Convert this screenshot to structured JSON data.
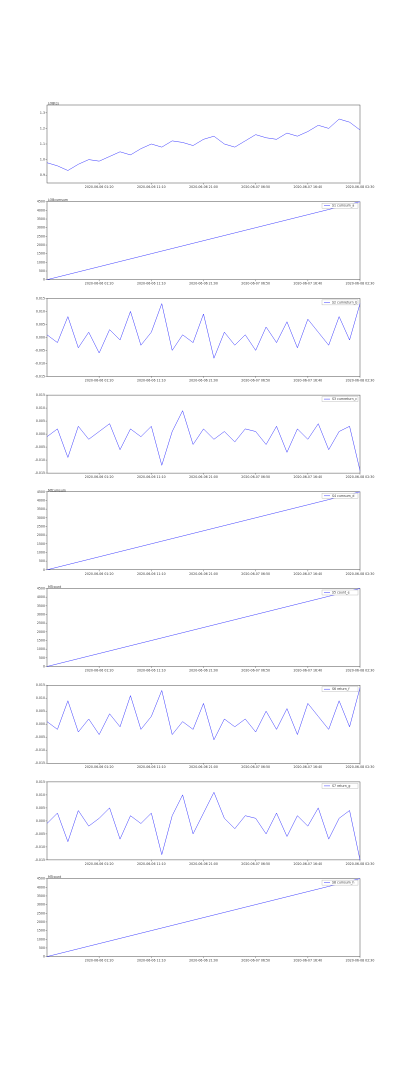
{
  "chart_data": [
    {
      "type": "line",
      "title": "LOBtcs",
      "color": "#3a3aff",
      "values": [
        0.98,
        0.96,
        0.93,
        0.97,
        1.0,
        0.99,
        1.02,
        1.05,
        1.03,
        1.07,
        1.1,
        1.08,
        1.12,
        1.11,
        1.09,
        1.13,
        1.15,
        1.1,
        1.08,
        1.12,
        1.16,
        1.14,
        1.13,
        1.17,
        1.15,
        1.18,
        1.22,
        1.2,
        1.26,
        1.24,
        1.19
      ],
      "xlim": [
        0,
        30
      ],
      "xticks": [
        {
          "value": 5,
          "label": "2020-06-06 01:20"
        },
        {
          "value": 10,
          "label": "2020-06-06 11:10"
        },
        {
          "value": 15,
          "label": "2020-06-06 21:00"
        },
        {
          "value": 20,
          "label": "2020-06-07 06:50"
        },
        {
          "value": 25,
          "label": "2020-06-07 16:40"
        },
        {
          "value": 30,
          "label": "2020-06-08 02:30"
        }
      ],
      "ylim": [
        0.85,
        1.35
      ],
      "yticks": [
        0.9,
        {
          "value": 1,
          "label": "1.0"
        },
        1.1,
        1.2,
        1.3
      ]
    },
    {
      "type": "line",
      "title": "LOBcumsum",
      "legend": "S1 cumsum_a",
      "color": "#3a3aff",
      "values": [
        0,
        150,
        300,
        450,
        600,
        750,
        900,
        1050,
        1200,
        1350,
        1500,
        1650,
        1800,
        1950,
        2100,
        2250,
        2400,
        2550,
        2700,
        2850,
        3000,
        3150,
        3300,
        3450,
        3600,
        3750,
        3900,
        4050,
        4200,
        4350,
        4500
      ],
      "xlim": [
        0,
        30
      ],
      "xticks": [
        {
          "value": 5,
          "label": "2020-06-06 01:20"
        },
        {
          "value": 10,
          "label": "2020-06-06 11:10"
        },
        {
          "value": 15,
          "label": "2020-06-06 21:00"
        },
        {
          "value": 20,
          "label": "2020-06-07 06:50"
        },
        {
          "value": 25,
          "label": "2020-06-07 16:40"
        },
        {
          "value": 30,
          "label": "2020-06-08 02:30"
        }
      ],
      "ylim": [
        0,
        4500
      ],
      "yticks": [
        0,
        500,
        1000,
        1500,
        2000,
        2500,
        3000,
        3500,
        4000,
        4500
      ]
    },
    {
      "type": "line",
      "legend": "S2 cumreturn_b",
      "color": "#3a3aff",
      "values": [
        0.001,
        -0.002,
        0.008,
        -0.004,
        0.002,
        -0.006,
        0.003,
        -0.001,
        0.01,
        -0.003,
        0.002,
        0.013,
        -0.005,
        0.001,
        -0.002,
        0.009,
        -0.008,
        0.002,
        -0.003,
        0.001,
        -0.005,
        0.004,
        -0.002,
        0.006,
        -0.004,
        0.007,
        0.002,
        -0.003,
        0.008,
        -0.001,
        0.013
      ],
      "xlim": [
        0,
        30
      ],
      "xticks": [
        {
          "value": 5,
          "label": "2020-06-06 01:20"
        },
        {
          "value": 10,
          "label": "2020-06-06 11:10"
        },
        {
          "value": 15,
          "label": "2020-06-06 21:00"
        },
        {
          "value": 20,
          "label": "2020-06-07 06:50"
        },
        {
          "value": 25,
          "label": "2020-06-07 16:40"
        },
        {
          "value": 30,
          "label": "2020-06-08 02:30"
        }
      ],
      "ylim": [
        -0.015,
        0.015
      ],
      "yticks": [
        -0.015,
        {
          "value": -0.01,
          "label": "-0.010"
        },
        -0.005,
        {
          "value": 0,
          "label": "0.000"
        },
        0.005,
        {
          "value": 0.01,
          "label": "0.010"
        },
        0.015
      ]
    },
    {
      "type": "line",
      "legend": "S3 cumreturn_c",
      "color": "#3a3aff",
      "values": [
        -0.001,
        0.002,
        -0.009,
        0.003,
        -0.002,
        0.001,
        0.004,
        -0.006,
        0.002,
        -0.001,
        0.003,
        -0.012,
        0.001,
        0.009,
        -0.004,
        0.002,
        -0.002,
        0.001,
        -0.003,
        0.002,
        0.001,
        -0.004,
        0.003,
        -0.007,
        0.002,
        -0.002,
        0.004,
        -0.006,
        0.001,
        0.003,
        -0.014
      ],
      "xlim": [
        0,
        30
      ],
      "xticks": [
        {
          "value": 5,
          "label": "2020-06-06 01:20"
        },
        {
          "value": 10,
          "label": "2020-06-06 11:10"
        },
        {
          "value": 15,
          "label": "2020-06-06 21:00"
        },
        {
          "value": 20,
          "label": "2020-06-07 06:50"
        },
        {
          "value": 25,
          "label": "2020-06-07 16:40"
        },
        {
          "value": 30,
          "label": "2020-06-08 02:30"
        }
      ],
      "ylim": [
        -0.015,
        0.015
      ],
      "yticks": [
        -0.015,
        {
          "value": -0.01,
          "label": "-0.010"
        },
        -0.005,
        {
          "value": 0,
          "label": "0.000"
        },
        0.005,
        {
          "value": 0.01,
          "label": "0.010"
        },
        0.015
      ]
    },
    {
      "type": "line",
      "title": "MTcumsum",
      "legend": "S4 cumsum_d",
      "color": "#3a3aff",
      "values": [
        0,
        150,
        300,
        450,
        600,
        750,
        900,
        1050,
        1200,
        1350,
        1500,
        1650,
        1800,
        1950,
        2100,
        2250,
        2400,
        2550,
        2700,
        2850,
        3000,
        3150,
        3300,
        3450,
        3600,
        3750,
        3900,
        4050,
        4200,
        4350,
        4500
      ],
      "xlim": [
        0,
        30
      ],
      "xticks": [
        {
          "value": 5,
          "label": "2020-06-06 01:20"
        },
        {
          "value": 10,
          "label": "2020-06-06 11:10"
        },
        {
          "value": 15,
          "label": "2020-06-06 21:00"
        },
        {
          "value": 20,
          "label": "2020-06-07 06:50"
        },
        {
          "value": 25,
          "label": "2020-06-07 16:40"
        },
        {
          "value": 30,
          "label": "2020-06-08 02:30"
        }
      ],
      "ylim": [
        0,
        4500
      ],
      "yticks": [
        0,
        500,
        1000,
        1500,
        2000,
        2500,
        3000,
        3500,
        4000,
        4500
      ]
    },
    {
      "type": "line",
      "title": "MTcount",
      "legend": "S5 count_e",
      "color": "#3a3aff",
      "values": [
        0,
        150,
        300,
        450,
        600,
        750,
        900,
        1050,
        1200,
        1350,
        1500,
        1650,
        1800,
        1950,
        2100,
        2250,
        2400,
        2550,
        2700,
        2850,
        3000,
        3150,
        3300,
        3450,
        3600,
        3750,
        3900,
        4050,
        4200,
        4350,
        4500
      ],
      "xlim": [
        0,
        30
      ],
      "xticks": [
        {
          "value": 5,
          "label": "2020-06-06 01:20"
        },
        {
          "value": 10,
          "label": "2020-06-06 11:10"
        },
        {
          "value": 15,
          "label": "2020-06-06 21:00"
        },
        {
          "value": 20,
          "label": "2020-06-07 06:50"
        },
        {
          "value": 25,
          "label": "2020-06-07 16:40"
        },
        {
          "value": 30,
          "label": "2020-06-08 02:30"
        }
      ],
      "ylim": [
        0,
        4500
      ],
      "yticks": [
        0,
        500,
        1000,
        1500,
        2000,
        2500,
        3000,
        3500,
        4000,
        4500
      ]
    },
    {
      "type": "line",
      "legend": "S6 return_f",
      "color": "#3a3aff",
      "values": [
        0.001,
        -0.002,
        0.009,
        -0.003,
        0.002,
        -0.004,
        0.004,
        -0.001,
        0.011,
        -0.002,
        0.003,
        0.013,
        -0.004,
        0.001,
        -0.002,
        0.008,
        -0.006,
        0.002,
        -0.001,
        0.002,
        -0.003,
        0.005,
        -0.002,
        0.006,
        -0.004,
        0.008,
        0.003,
        -0.002,
        0.009,
        -0.001,
        0.014
      ],
      "xlim": [
        0,
        30
      ],
      "xticks": [
        {
          "value": 5,
          "label": "2020-06-06 01:20"
        },
        {
          "value": 10,
          "label": "2020-06-06 11:10"
        },
        {
          "value": 15,
          "label": "2020-06-06 21:00"
        },
        {
          "value": 20,
          "label": "2020-06-07 06:50"
        },
        {
          "value": 25,
          "label": "2020-06-07 16:40"
        },
        {
          "value": 30,
          "label": "2020-06-08 02:30"
        }
      ],
      "ylim": [
        -0.015,
        0.015
      ],
      "yticks": [
        -0.015,
        {
          "value": -0.01,
          "label": "-0.010"
        },
        -0.005,
        {
          "value": 0,
          "label": "0.000"
        },
        0.005,
        {
          "value": 0.01,
          "label": "0.010"
        },
        0.015
      ]
    },
    {
      "type": "line",
      "legend": "S7 return_g",
      "color": "#3a3aff",
      "values": [
        -0.001,
        0.003,
        -0.008,
        0.004,
        -0.002,
        0.001,
        0.005,
        -0.007,
        0.002,
        -0.001,
        0.003,
        -0.013,
        0.002,
        0.01,
        -0.005,
        0.003,
        0.011,
        0.001,
        -0.003,
        0.002,
        0.001,
        -0.005,
        0.003,
        -0.006,
        0.002,
        -0.002,
        0.005,
        -0.007,
        0.001,
        0.004,
        -0.015
      ],
      "xlim": [
        0,
        30
      ],
      "xticks": [
        {
          "value": 5,
          "label": "2020-06-06 01:20"
        },
        {
          "value": 10,
          "label": "2020-06-06 11:10"
        },
        {
          "value": 15,
          "label": "2020-06-06 21:00"
        },
        {
          "value": 20,
          "label": "2020-06-07 06:50"
        },
        {
          "value": 25,
          "label": "2020-06-07 16:40"
        },
        {
          "value": 30,
          "label": "2020-06-08 02:30"
        }
      ],
      "ylim": [
        -0.015,
        0.015
      ],
      "yticks": [
        -0.015,
        {
          "value": -0.01,
          "label": "-0.010"
        },
        -0.005,
        {
          "value": 0,
          "label": "0.000"
        },
        0.005,
        {
          "value": 0.01,
          "label": "0.010"
        },
        0.015
      ]
    },
    {
      "type": "line",
      "title": "MTcount",
      "legend": "S8 cumsum_h",
      "color": "#3a3aff",
      "values": [
        0,
        150,
        300,
        450,
        600,
        750,
        900,
        1050,
        1200,
        1350,
        1500,
        1650,
        1800,
        1950,
        2100,
        2250,
        2400,
        2550,
        2700,
        2850,
        3000,
        3150,
        3300,
        3450,
        3600,
        3750,
        3900,
        4050,
        4200,
        4350,
        4500
      ],
      "xlim": [
        0,
        30
      ],
      "xticks": [
        {
          "value": 5,
          "label": "2020-06-06 01:20"
        },
        {
          "value": 10,
          "label": "2020-06-06 11:10"
        },
        {
          "value": 15,
          "label": "2020-06-06 21:00"
        },
        {
          "value": 20,
          "label": "2020-06-07 06:50"
        },
        {
          "value": 25,
          "label": "2020-06-07 16:40"
        },
        {
          "value": 30,
          "label": "2020-06-08 02:30"
        }
      ],
      "ylim": [
        0,
        4500
      ],
      "yticks": [
        0,
        500,
        1000,
        1500,
        2000,
        2500,
        3000,
        3500,
        4000,
        4500
      ]
    }
  ]
}
